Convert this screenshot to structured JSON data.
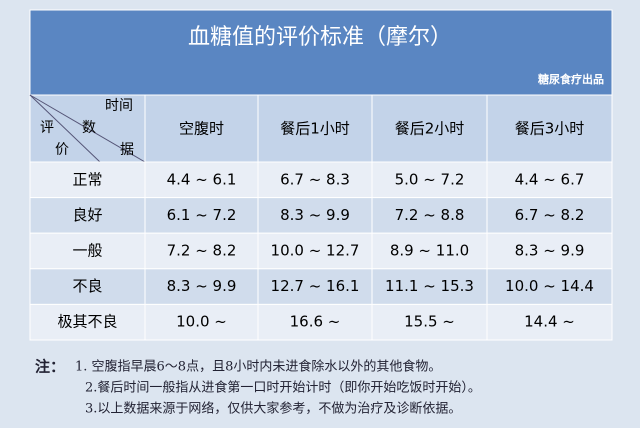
{
  "header": {
    "title": "血糖值的评价标准（摩尔）",
    "subtitle": "糖尿食疗出品"
  },
  "table": {
    "corner": {
      "top": "时间",
      "middle_left": "评",
      "middle": "数",
      "bottom_left": "价",
      "bottom": "据"
    },
    "columns": [
      "空腹时",
      "餐后1小时",
      "餐后2小时",
      "餐后3小时"
    ],
    "rows": [
      [
        "正常",
        "4.4 ~ 6.1",
        "6.7 ~ 8.3",
        "5.0 ~ 7.2",
        "4.4 ~ 6.7"
      ],
      [
        "良好",
        "6.1 ~ 7.2",
        "8.3 ~ 9.9",
        "7.2 ~ 8.8",
        "6.7 ~ 8.2"
      ],
      [
        "一般",
        "7.2 ~ 8.2",
        "10.0 ~ 12.7",
        "8.9 ~ 11.0",
        "8.3 ~ 9.9"
      ],
      [
        "不良",
        "8.3 ~ 9.9",
        "12.7 ~ 16.1",
        "11.1 ~ 15.3",
        "10.0 ~ 14.4"
      ],
      [
        "极其不良",
        "10.0 ~",
        "16.6 ~",
        "15.5 ~",
        "14.4 ~"
      ]
    ]
  },
  "notes": {
    "label": "注：",
    "items": [
      "1. 空腹指早晨6～8点，且8小时内未进食除水以外的其他食物。",
      "2.餐后时间一般指从进食第一口时开始计时（即你开始吃饭时开始）。",
      "3.以上数据来源于网络，仅供大家参考，不做为治疗及诊断依据。"
    ]
  }
}
